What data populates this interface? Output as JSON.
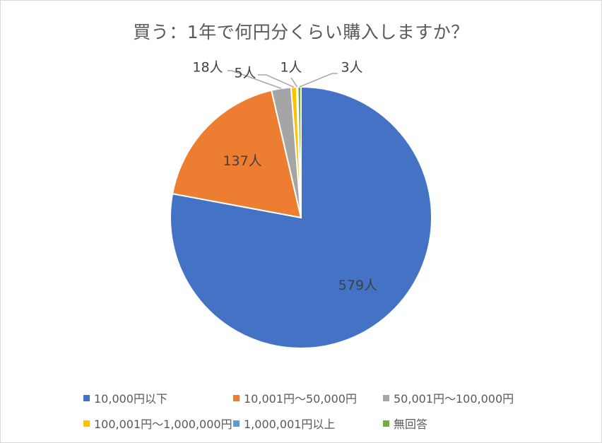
{
  "chart_data": {
    "type": "pie",
    "title": "買う：1年で何円分くらい購入しますか？",
    "categories": [
      "10,000円以下",
      "10,001円～50,000円",
      "50,001円～100,000円",
      "100,001円～1,000,000円",
      "1,000,001円以上",
      "無回答"
    ],
    "values": [
      579,
      137,
      18,
      5,
      1,
      3
    ],
    "data_labels": [
      "579人",
      "137人",
      "18人",
      "5人",
      "1人",
      "3人"
    ],
    "colors": [
      "#4472C4",
      "#ED7D31",
      "#A5A5A5",
      "#FFC000",
      "#5B9BD5",
      "#70AD47"
    ],
    "legend_position": "bottom"
  }
}
